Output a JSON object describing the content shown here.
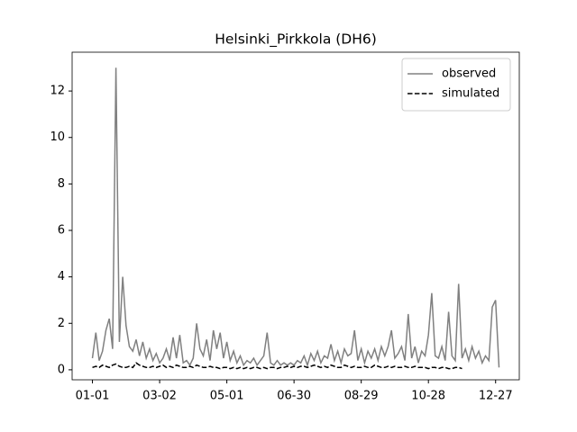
{
  "chart_data": {
    "type": "line",
    "title": "Helsinki_Pirkkola (DH6)",
    "x": [
      0,
      3,
      6,
      9,
      12,
      15,
      18,
      21,
      24,
      27,
      30,
      33,
      36,
      39,
      42,
      45,
      48,
      51,
      54,
      57,
      60,
      63,
      66,
      69,
      72,
      75,
      78,
      81,
      84,
      87,
      90,
      93,
      96,
      99,
      102,
      105,
      108,
      111,
      114,
      117,
      120,
      123,
      126,
      129,
      132,
      135,
      138,
      141,
      144,
      147,
      150,
      153,
      156,
      159,
      162,
      165,
      168,
      171,
      174,
      177,
      180,
      183,
      186,
      189,
      192,
      195,
      198,
      201,
      204,
      207,
      210,
      213,
      216,
      219,
      222,
      225,
      228,
      231,
      234,
      237,
      240,
      243,
      246,
      249,
      252,
      255,
      258,
      261,
      264,
      267,
      270,
      273,
      276,
      279,
      282,
      285,
      288,
      291,
      294,
      297,
      300,
      303,
      306,
      309,
      312,
      315,
      318,
      321,
      324,
      327,
      330,
      333,
      336,
      339,
      342,
      345,
      348,
      351,
      354,
      357,
      360,
      363
    ],
    "series": [
      {
        "name": "observed",
        "color": "#808080",
        "linestyle": "solid",
        "values": [
          0.5,
          1.6,
          0.4,
          0.8,
          1.7,
          2.2,
          0.9,
          13.0,
          1.2,
          4.0,
          1.9,
          1.0,
          0.8,
          1.3,
          0.6,
          1.2,
          0.5,
          0.9,
          0.4,
          0.7,
          0.3,
          0.5,
          0.9,
          0.4,
          1.4,
          0.5,
          1.5,
          0.3,
          0.4,
          0.2,
          0.5,
          2.0,
          0.9,
          0.6,
          1.3,
          0.4,
          1.7,
          0.9,
          1.6,
          0.5,
          1.2,
          0.4,
          0.8,
          0.3,
          0.6,
          0.2,
          0.4,
          0.3,
          0.5,
          0.2,
          0.4,
          0.6,
          1.6,
          0.3,
          0.2,
          0.4,
          0.2,
          0.3,
          0.2,
          0.3,
          0.2,
          0.4,
          0.3,
          0.6,
          0.2,
          0.7,
          0.4,
          0.8,
          0.3,
          0.6,
          0.5,
          1.1,
          0.4,
          0.8,
          0.3,
          0.9,
          0.6,
          0.7,
          1.7,
          0.4,
          0.9,
          0.3,
          0.8,
          0.5,
          0.9,
          0.4,
          1.0,
          0.6,
          1.0,
          1.7,
          0.5,
          0.7,
          1.0,
          0.4,
          2.4,
          0.5,
          1.0,
          0.3,
          0.8,
          0.6,
          1.5,
          3.3,
          0.6,
          0.5,
          1.0,
          0.4,
          2.5,
          0.6,
          0.4,
          3.7,
          0.5,
          0.9,
          0.4,
          1.0,
          0.5,
          0.8,
          0.3,
          0.6,
          0.4,
          2.7,
          3.0,
          0.1
        ]
      },
      {
        "name": "simulated",
        "color": "#000000",
        "linestyle": "dashed",
        "values": [
          0.1,
          0.15,
          0.1,
          0.2,
          0.15,
          0.1,
          0.2,
          0.25,
          0.15,
          0.1,
          0.1,
          0.15,
          0.1,
          0.3,
          0.2,
          0.15,
          0.1,
          0.1,
          0.15,
          0.1,
          0.15,
          0.2,
          0.1,
          0.15,
          0.1,
          0.2,
          0.15,
          0.1,
          0.1,
          0.15,
          0.1,
          0.2,
          0.15,
          0.1,
          0.1,
          0.15,
          0.1,
          0.1,
          0.05,
          0.1,
          0.1,
          0.05,
          0.1,
          0.05,
          0.1,
          0.05,
          0.1,
          0.05,
          0.1,
          0.1,
          0.05,
          0.1,
          0.05,
          0.1,
          0.1,
          0.05,
          0.1,
          0.1,
          0.15,
          0.1,
          0.15,
          0.1,
          0.15,
          0.15,
          0.1,
          0.15,
          0.2,
          0.15,
          0.1,
          0.15,
          0.1,
          0.2,
          0.15,
          0.1,
          0.1,
          0.2,
          0.15,
          0.1,
          0.15,
          0.1,
          0.1,
          0.15,
          0.1,
          0.1,
          0.2,
          0.15,
          0.1,
          0.1,
          0.15,
          0.1,
          0.15,
          0.1,
          0.1,
          0.15,
          0.1,
          0.1,
          0.15,
          0.1,
          0.1,
          0.1,
          0.05,
          0.1,
          0.1,
          0.05,
          0.1,
          0.1,
          0.05,
          0.05,
          0.1,
          0.1,
          0.05,
          null,
          null,
          null,
          null,
          null,
          null,
          null,
          null,
          null,
          null,
          null
        ]
      }
    ],
    "xlim": [
      -18.15,
      381.15
    ],
    "xticks": [
      {
        "value": 0,
        "label": "01-01"
      },
      {
        "value": 60,
        "label": "03-02"
      },
      {
        "value": 120,
        "label": "05-01"
      },
      {
        "value": 180,
        "label": "06-30"
      },
      {
        "value": 240,
        "label": "08-29"
      },
      {
        "value": 300,
        "label": "10-28"
      },
      {
        "value": 360,
        "label": "12-27"
      }
    ],
    "ylim": [
      -0.43,
      13.67
    ],
    "yticks": [
      0,
      2,
      4,
      6,
      8,
      10,
      12
    ],
    "legend": "upper right"
  }
}
